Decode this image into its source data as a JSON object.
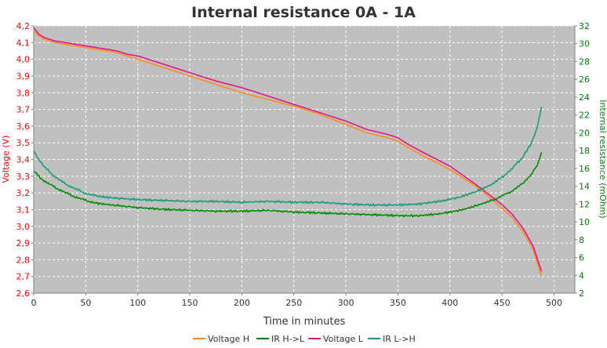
{
  "chart_data": {
    "type": "line",
    "title": "Internal resistance  0A - 1A",
    "xlabel": "Time in minutes",
    "ylabel_left": "Voltage (V)",
    "ylabel_right": "Internal resistance (mOhm)",
    "xlim": [
      0,
      520
    ],
    "ylim_left": [
      2.6,
      4.2
    ],
    "ylim_right": [
      2,
      32
    ],
    "x_ticks": [
      "0",
      "50",
      "100",
      "150",
      "200",
      "250",
      "300",
      "350",
      "400",
      "450",
      "500"
    ],
    "y_ticks_left": [
      "2,6",
      "2,7",
      "2,8",
      "2,9",
      "3,0",
      "3,1",
      "3,2",
      "3,3",
      "3,4",
      "3,5",
      "3,6",
      "3,7",
      "3,8",
      "3,9",
      "4,0",
      "4,1",
      "4,2"
    ],
    "y_ticks_right": [
      "2",
      "4",
      "6",
      "8",
      "10",
      "12",
      "14",
      "16",
      "18",
      "20",
      "22",
      "24",
      "26",
      "28",
      "30",
      "32"
    ],
    "grid": true,
    "legend_position": "bottom",
    "colors": {
      "plot_bg": "#c0c0c0",
      "left_axis": "#ff0000",
      "right_axis": "#008000",
      "grid": "#ffffff"
    },
    "series": [
      {
        "name": "Voltage H",
        "axis": "left",
        "color": "#ff8c1a",
        "x": [
          0,
          5,
          10,
          20,
          30,
          40,
          50,
          60,
          70,
          80,
          90,
          100,
          125,
          150,
          175,
          200,
          225,
          250,
          275,
          300,
          320,
          340,
          350,
          360,
          375,
          400,
          425,
          450,
          460,
          470,
          480,
          488
        ],
        "y": [
          4.17,
          4.14,
          4.12,
          4.1,
          4.09,
          4.08,
          4.07,
          4.06,
          4.05,
          4.04,
          4.02,
          4.0,
          3.95,
          3.9,
          3.85,
          3.8,
          3.76,
          3.72,
          3.67,
          3.61,
          3.56,
          3.53,
          3.51,
          3.47,
          3.42,
          3.34,
          3.24,
          3.11,
          3.05,
          2.97,
          2.86,
          2.7
        ]
      },
      {
        "name": "IR H->L",
        "axis": "right",
        "color": "#008c00",
        "x": [
          0,
          5,
          10,
          20,
          30,
          40,
          50,
          60,
          75,
          100,
          125,
          150,
          175,
          200,
          225,
          250,
          275,
          300,
          325,
          350,
          370,
          390,
          410,
          425,
          440,
          450,
          460,
          470,
          478,
          484,
          488
        ],
        "y": [
          15.7,
          15.1,
          14.6,
          13.9,
          13.3,
          12.8,
          12.4,
          12.1,
          11.9,
          11.6,
          11.4,
          11.3,
          11.2,
          11.2,
          11.3,
          11.1,
          11.0,
          10.9,
          10.8,
          10.7,
          10.7,
          10.9,
          11.3,
          11.8,
          12.4,
          12.9,
          13.5,
          14.3,
          15.3,
          16.4,
          17.8
        ]
      },
      {
        "name": "Voltage L",
        "axis": "left",
        "color": "#e0168c",
        "x": [
          0,
          5,
          10,
          20,
          30,
          40,
          50,
          60,
          70,
          80,
          90,
          100,
          125,
          150,
          175,
          200,
          225,
          250,
          275,
          300,
          320,
          340,
          350,
          360,
          375,
          400,
          425,
          450,
          460,
          470,
          480,
          488
        ],
        "y": [
          4.19,
          4.15,
          4.13,
          4.11,
          4.1,
          4.09,
          4.08,
          4.07,
          4.06,
          4.05,
          4.03,
          4.02,
          3.97,
          3.92,
          3.87,
          3.83,
          3.78,
          3.73,
          3.68,
          3.63,
          3.58,
          3.55,
          3.53,
          3.49,
          3.44,
          3.36,
          3.25,
          3.13,
          3.07,
          2.99,
          2.88,
          2.73
        ]
      },
      {
        "name": "IR L->H",
        "axis": "right",
        "color": "#1a9c78",
        "x": [
          0,
          5,
          10,
          20,
          30,
          40,
          50,
          60,
          75,
          100,
          125,
          150,
          175,
          200,
          225,
          250,
          275,
          300,
          325,
          350,
          370,
          390,
          410,
          425,
          440,
          450,
          460,
          470,
          478,
          484,
          488
        ],
        "y": [
          18.0,
          17.0,
          16.2,
          15.1,
          14.3,
          13.7,
          13.2,
          12.9,
          12.7,
          12.5,
          12.4,
          12.3,
          12.3,
          12.2,
          12.3,
          12.2,
          12.2,
          12.0,
          11.9,
          11.9,
          12.0,
          12.3,
          12.8,
          13.4,
          14.2,
          15.0,
          16.0,
          17.3,
          18.8,
          20.6,
          22.9
        ]
      }
    ]
  }
}
